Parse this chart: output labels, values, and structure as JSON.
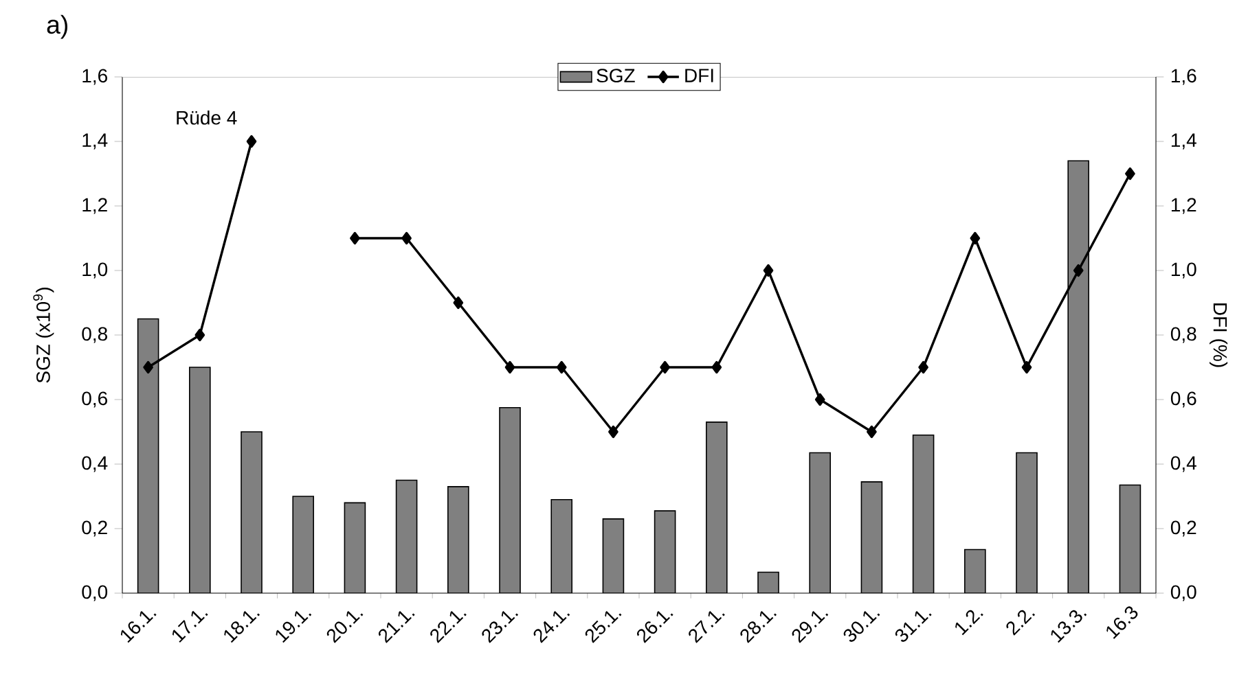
{
  "chart_data": {
    "type": "bar",
    "title": "a)",
    "ylabel": "SGZ (x10$^{9}$)",
    "y2label": "DFI (%)",
    "annotations": [
      "Rüde 4"
    ],
    "categories": [
      "16.1.",
      "17.1.",
      "18.1.",
      "19.1.",
      "20.1.",
      "21.1.",
      "22.1.",
      "23.1.",
      "24.1.",
      "25.1.",
      "26.1.",
      "27.1.",
      "28.1.",
      "29.1.",
      "30.1.",
      "31.1.",
      "1.2.",
      "2.2.",
      "13.3.",
      "16.3"
    ],
    "series": [
      {
        "name": "SGZ",
        "color": "#808080",
        "values": [
          0.85,
          0.7,
          0.5,
          0.3,
          0.28,
          0.35,
          0.33,
          0.575,
          0.29,
          0.23,
          0.255,
          0.53,
          0.065,
          0.435,
          0.345,
          0.49,
          0.135,
          0.435,
          1.34,
          0.335
        ]
      },
      {
        "name": "DFI",
        "type": "line",
        "axis": "y2",
        "color": "#000000",
        "marker": "diamond",
        "values": [
          0.7,
          0.8,
          1.4,
          null,
          1.1,
          1.1,
          0.9,
          0.7,
          0.7,
          0.5,
          0.7,
          0.7,
          1.0,
          0.6,
          0.5,
          0.7,
          1.1,
          0.7,
          1.0,
          1.3
        ]
      }
    ],
    "ylim": [
      0,
      1.6
    ],
    "yticks": [
      {
        "value": 0,
        "label": "0,0"
      },
      {
        "value": 0.2,
        "label": "0,2"
      },
      {
        "value": 0.4,
        "label": "0,4"
      },
      {
        "value": 0.6,
        "label": "0,6"
      },
      {
        "value": 0.8,
        "label": "0,8"
      },
      {
        "value": 1.0,
        "label": "1,0"
      },
      {
        "value": 1.2,
        "label": "1,2"
      },
      {
        "value": 1.4,
        "label": "1,4"
      },
      {
        "value": 1.6,
        "label": "1,6"
      }
    ],
    "y2lim": [
      0,
      1.6
    ],
    "y2ticks": [
      {
        "value": 0,
        "label": "0,0"
      },
      {
        "value": 0.2,
        "label": "0,2"
      },
      {
        "value": 0.4,
        "label": "0,4"
      },
      {
        "value": 0.6,
        "label": "0,6"
      },
      {
        "value": 0.8,
        "label": "0,8"
      },
      {
        "value": 1.0,
        "label": "1,0"
      },
      {
        "value": 1.2,
        "label": "1,2"
      },
      {
        "value": 1.4,
        "label": "1,4"
      },
      {
        "value": 1.6,
        "label": "1,6"
      }
    ],
    "grid": false,
    "legend": "top"
  }
}
